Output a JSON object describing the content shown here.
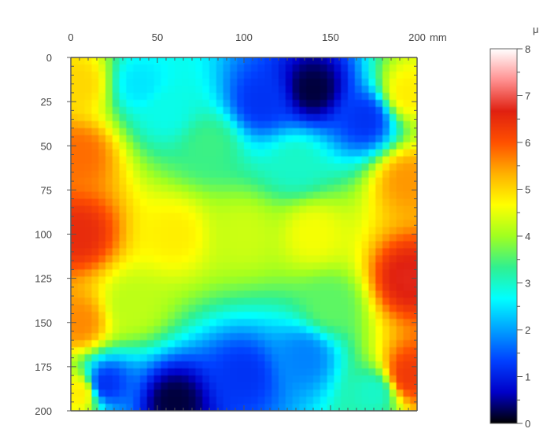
{
  "chart_data": {
    "type": "heatmap",
    "title": "",
    "x_axis": {
      "ticks": [
        "0",
        "50",
        "100",
        "150",
        "200"
      ],
      "tick_values": [
        0,
        50,
        100,
        150,
        200
      ],
      "unit": "mm",
      "range": [
        0,
        200
      ],
      "position": "top"
    },
    "y_axis": {
      "ticks": [
        "0",
        "25",
        "50",
        "75",
        "100",
        "125",
        "150",
        "175",
        "200"
      ],
      "tick_values": [
        0,
        25,
        50,
        75,
        100,
        125,
        150,
        175,
        200
      ],
      "range": [
        0,
        200
      ],
      "inverted": true
    },
    "colorbar": {
      "unit": "μ",
      "ticks": [
        "0",
        "1",
        "2",
        "3",
        "4",
        "5",
        "6",
        "7",
        "8"
      ],
      "tick_values": [
        0,
        1,
        2,
        3,
        4,
        5,
        6,
        7,
        8
      ],
      "range": [
        0,
        8
      ],
      "placement": "right",
      "colors": [
        "#000000",
        "#0000c8",
        "#0040ff",
        "#00a0ff",
        "#00ffff",
        "#30f090",
        "#a0ff20",
        "#ffff00",
        "#ffb000",
        "#ff5000",
        "#e02010",
        "#ff9090",
        "#ffffff"
      ]
    },
    "grid": false,
    "sample_points": [
      {
        "x": 5,
        "y": 100,
        "value": 6.5
      },
      {
        "x": 5,
        "y": 55,
        "value": 5.8
      },
      {
        "x": 5,
        "y": 150,
        "value": 5.6
      },
      {
        "x": 5,
        "y": 15,
        "value": 5.0
      },
      {
        "x": 5,
        "y": 190,
        "value": 4.8
      },
      {
        "x": 195,
        "y": 125,
        "value": 6.7
      },
      {
        "x": 195,
        "y": 180,
        "value": 6.3
      },
      {
        "x": 195,
        "y": 70,
        "value": 5.5
      },
      {
        "x": 195,
        "y": 20,
        "value": 4.8
      },
      {
        "x": 140,
        "y": 18,
        "value": 0.2
      },
      {
        "x": 110,
        "y": 25,
        "value": 1.2
      },
      {
        "x": 170,
        "y": 35,
        "value": 1.2
      },
      {
        "x": 60,
        "y": 195,
        "value": 0.2
      },
      {
        "x": 20,
        "y": 185,
        "value": 1.2
      },
      {
        "x": 100,
        "y": 180,
        "value": 1.2
      },
      {
        "x": 135,
        "y": 170,
        "value": 1.8
      },
      {
        "x": 40,
        "y": 15,
        "value": 2.5
      },
      {
        "x": 55,
        "y": 30,
        "value": 2.8
      },
      {
        "x": 80,
        "y": 50,
        "value": 3.4
      },
      {
        "x": 60,
        "y": 100,
        "value": 4.8
      },
      {
        "x": 100,
        "y": 100,
        "value": 4.3
      },
      {
        "x": 140,
        "y": 100,
        "value": 4.6
      },
      {
        "x": 130,
        "y": 60,
        "value": 3.0
      },
      {
        "x": 150,
        "y": 140,
        "value": 3.6
      },
      {
        "x": 35,
        "y": 140,
        "value": 4.2
      },
      {
        "x": 175,
        "y": 190,
        "value": 3.0
      }
    ]
  }
}
